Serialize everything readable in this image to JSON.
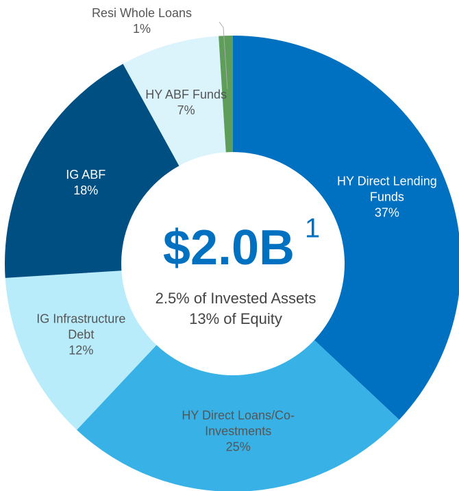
{
  "chart_data": {
    "type": "donut",
    "categories": [
      "HY Direct Lending Funds",
      "HY Direct Loans/Co-Investments",
      "IG Infrastructure Debt",
      "IG ABF",
      "HY ABF Funds",
      "Resi Whole Loans"
    ],
    "values": [
      37,
      25,
      12,
      18,
      7,
      1
    ],
    "value_labels": [
      "37%",
      "25%",
      "12%",
      "18%",
      "7%",
      "1%"
    ],
    "colors": [
      "#0070c0",
      "#38b2e6",
      "#b8ecfa",
      "#004f82",
      "#dbf4fc",
      "#5e9e5a"
    ],
    "center_title": "$2.0B",
    "center_title_note": "1",
    "center_lines": [
      "2.5% of Invested Assets",
      "13% of Equity"
    ]
  }
}
